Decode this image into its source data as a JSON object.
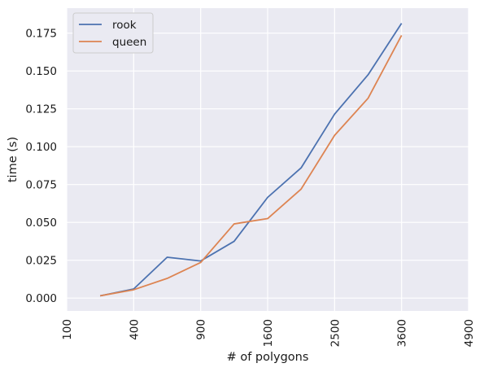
{
  "chart_data": {
    "type": "line",
    "title": "",
    "xlabel": "# of polygons",
    "ylabel": "time (s)",
    "x": [
      225,
      400,
      625,
      900,
      1225,
      1600,
      2025,
      2500,
      3025,
      3600
    ],
    "xticks": [
      100,
      400,
      900,
      1600,
      2500,
      3600,
      4900
    ],
    "xtick_labels": [
      "100",
      "400",
      "900",
      "1600",
      "2500",
      "3600",
      "4900"
    ],
    "xscale": "sqrt",
    "xlim": [
      100,
      4900
    ],
    "yticks": [
      0.0,
      0.025,
      0.05,
      0.075,
      0.1,
      0.125,
      0.15,
      0.175
    ],
    "ytick_labels": [
      "0.000",
      "0.025",
      "0.050",
      "0.075",
      "0.100",
      "0.125",
      "0.150",
      "0.175"
    ],
    "ylim": [
      -0.0085,
      0.1915
    ],
    "grid": true,
    "legend_position": "top-left",
    "series": [
      {
        "name": "rook",
        "color": "#4c72b0",
        "values": [
          0.0015,
          0.006,
          0.027,
          0.0245,
          0.0375,
          0.0665,
          0.086,
          0.1215,
          0.1475,
          0.1815
        ]
      },
      {
        "name": "queen",
        "color": "#dd8452",
        "values": [
          0.0015,
          0.0055,
          0.013,
          0.0235,
          0.049,
          0.0525,
          0.072,
          0.1075,
          0.132,
          0.1735
        ]
      }
    ]
  }
}
